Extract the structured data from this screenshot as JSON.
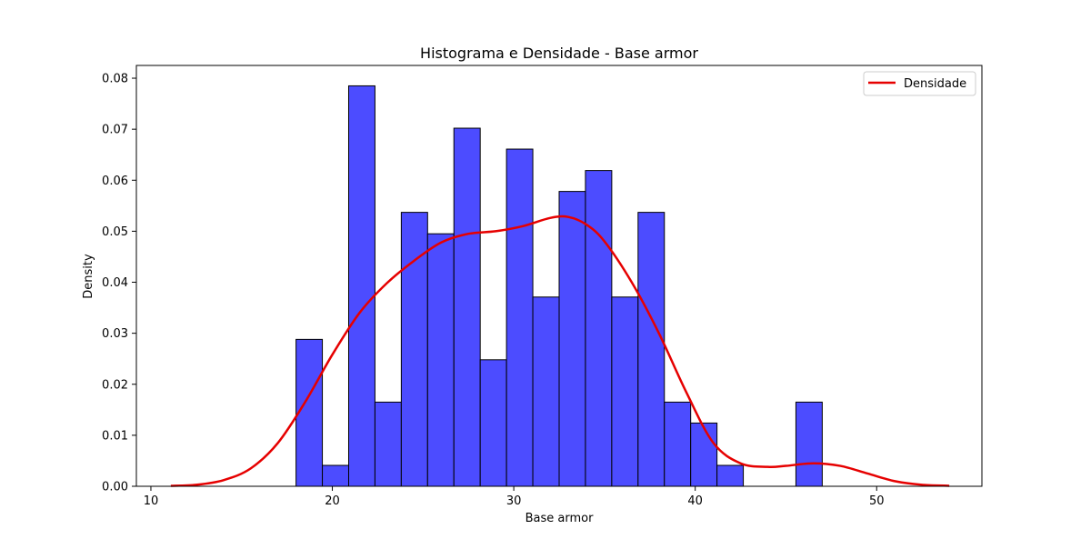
{
  "chart_data": {
    "type": "bar",
    "title": "Histograma e Densidade - Base armor",
    "xlabel": "Base armor",
    "ylabel": "Density",
    "xlim": [
      9.2,
      55.8
    ],
    "ylim": [
      0,
      0.0825
    ],
    "xticks": [
      10,
      20,
      30,
      40,
      50
    ],
    "yticks": [
      0.0,
      0.01,
      0.02,
      0.03,
      0.04,
      0.05,
      0.06,
      0.07,
      0.08
    ],
    "ytick_labels": [
      "0.00",
      "0.01",
      "0.02",
      "0.03",
      "0.04",
      "0.05",
      "0.06",
      "0.07",
      "0.08"
    ],
    "grid": false,
    "legend": {
      "position": "top-right",
      "entries": [
        "Densidade"
      ]
    },
    "colors": {
      "bars": "#4c4cff",
      "bar_edge": "#000000",
      "density": "#e60000"
    },
    "series": [
      {
        "name": "histogram",
        "kind": "bar",
        "bins": [
          {
            "x0": 18.0,
            "x1": 19.45,
            "value": 0.0288
          },
          {
            "x0": 19.45,
            "x1": 20.9,
            "value": 0.0041
          },
          {
            "x0": 20.9,
            "x1": 22.35,
            "value": 0.0785
          },
          {
            "x0": 22.35,
            "x1": 23.8,
            "value": 0.0165
          },
          {
            "x0": 23.8,
            "x1": 25.25,
            "value": 0.0537
          },
          {
            "x0": 25.25,
            "x1": 26.7,
            "value": 0.0495
          },
          {
            "x0": 26.7,
            "x1": 28.15,
            "value": 0.0702
          },
          {
            "x0": 28.15,
            "x1": 29.6,
            "value": 0.0248
          },
          {
            "x0": 29.6,
            "x1": 31.05,
            "value": 0.0661
          },
          {
            "x0": 31.05,
            "x1": 32.5,
            "value": 0.0371
          },
          {
            "x0": 32.5,
            "x1": 33.95,
            "value": 0.0578
          },
          {
            "x0": 33.95,
            "x1": 35.4,
            "value": 0.0619
          },
          {
            "x0": 35.4,
            "x1": 36.85,
            "value": 0.0371
          },
          {
            "x0": 36.85,
            "x1": 38.3,
            "value": 0.0537
          },
          {
            "x0": 38.3,
            "x1": 39.75,
            "value": 0.0165
          },
          {
            "x0": 39.75,
            "x1": 41.2,
            "value": 0.0124
          },
          {
            "x0": 41.2,
            "x1": 42.65,
            "value": 0.0041
          },
          {
            "x0": 45.55,
            "x1": 47.0,
            "value": 0.0165
          }
        ]
      },
      {
        "name": "Densidade",
        "kind": "line",
        "points": [
          [
            11.1,
            0.0001
          ],
          [
            12.5,
            0.0003
          ],
          [
            14.0,
            0.0012
          ],
          [
            15.5,
            0.0035
          ],
          [
            17.0,
            0.0085
          ],
          [
            18.5,
            0.0165
          ],
          [
            20.0,
            0.0258
          ],
          [
            21.5,
            0.034
          ],
          [
            23.0,
            0.0398
          ],
          [
            24.5,
            0.0442
          ],
          [
            26.0,
            0.0478
          ],
          [
            27.5,
            0.0495
          ],
          [
            29.0,
            0.05
          ],
          [
            30.5,
            0.051
          ],
          [
            32.0,
            0.0526
          ],
          [
            33.0,
            0.0528
          ],
          [
            34.0,
            0.0513
          ],
          [
            35.0,
            0.048
          ],
          [
            36.5,
            0.04
          ],
          [
            38.0,
            0.03
          ],
          [
            39.5,
            0.0185
          ],
          [
            41.0,
            0.0085
          ],
          [
            42.5,
            0.0045
          ],
          [
            44.0,
            0.0038
          ],
          [
            45.0,
            0.004
          ],
          [
            46.5,
            0.0045
          ],
          [
            48.0,
            0.004
          ],
          [
            49.5,
            0.0025
          ],
          [
            51.0,
            0.001
          ],
          [
            52.5,
            0.0003
          ],
          [
            54.0,
            0.0001
          ]
        ]
      }
    ]
  }
}
